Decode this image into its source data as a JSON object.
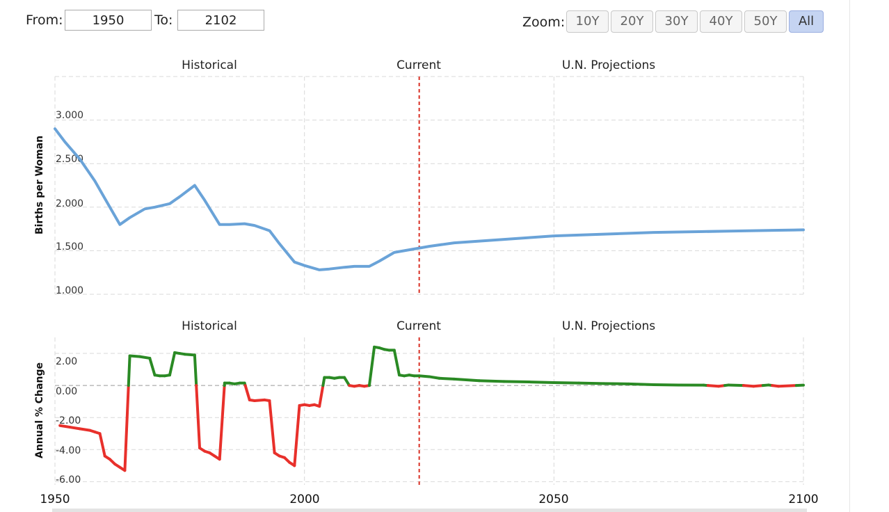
{
  "controls": {
    "from_label": "From:",
    "from_value": "1950",
    "to_label": "To:",
    "to_value": "2102",
    "zoom_label": "Zoom:",
    "zoom_buttons": [
      "10Y",
      "20Y",
      "30Y",
      "40Y",
      "50Y",
      "All"
    ],
    "zoom_active": "All"
  },
  "colors": {
    "line": "#6aa3d8",
    "positive": "#2a8a24",
    "negative": "#e8302b",
    "current_marker": "#d93025",
    "grid": "#d9d9d9"
  },
  "chart_data": [
    {
      "type": "line",
      "ylabel": "Births per Woman",
      "section_labels": [
        "Historical",
        "Current",
        "U.N. Projections"
      ],
      "xlim": [
        1950,
        2100
      ],
      "ylim": [
        1.0,
        3.0
      ],
      "yticks": [
        "1.000",
        "1.500",
        "2.000",
        "2.500",
        "3.000"
      ],
      "current_year": 2023,
      "grid": true,
      "x": [
        1950,
        1952,
        1955,
        1958,
        1960,
        1963,
        1965,
        1968,
        1970,
        1973,
        1975,
        1978,
        1980,
        1983,
        1985,
        1988,
        1990,
        1993,
        1995,
        1998,
        2000,
        2003,
        2005,
        2008,
        2010,
        2013,
        2015,
        2018,
        2020,
        2023,
        2025,
        2030,
        2035,
        2040,
        2045,
        2050,
        2055,
        2060,
        2065,
        2070,
        2075,
        2080,
        2085,
        2090,
        2095,
        2100
      ],
      "y": [
        2.9,
        2.75,
        2.55,
        2.3,
        2.1,
        1.8,
        1.88,
        1.98,
        2.0,
        2.04,
        2.12,
        2.25,
        2.08,
        1.8,
        1.8,
        1.81,
        1.79,
        1.73,
        1.58,
        1.37,
        1.33,
        1.28,
        1.29,
        1.31,
        1.32,
        1.32,
        1.38,
        1.48,
        1.5,
        1.53,
        1.55,
        1.59,
        1.61,
        1.63,
        1.65,
        1.67,
        1.68,
        1.69,
        1.7,
        1.71,
        1.715,
        1.72,
        1.725,
        1.73,
        1.735,
        1.74
      ]
    },
    {
      "type": "line",
      "ylabel": "Annual % Change",
      "section_labels": [
        "Historical",
        "Current",
        "U.N. Projections"
      ],
      "xlim": [
        1950,
        2100
      ],
      "xticks": [
        "1950",
        "2000",
        "2050",
        "2100"
      ],
      "ylim": [
        -6.0,
        2.0
      ],
      "yticks": [
        "-6.00",
        "-4.00",
        "-2.00",
        "0.00",
        "2.00"
      ],
      "current_year": 2023,
      "grid": true,
      "x": [
        1951,
        1953,
        1955,
        1957,
        1958,
        1959,
        1960,
        1961,
        1962,
        1963,
        1964,
        1965,
        1967,
        1969,
        1970,
        1971,
        1972,
        1973,
        1974,
        1975,
        1976,
        1978,
        1979,
        1980,
        1981,
        1982,
        1983,
        1984,
        1985,
        1986,
        1987,
        1988,
        1989,
        1990,
        1992,
        1993,
        1994,
        1995,
        1996,
        1997,
        1998,
        1999,
        2000,
        2001,
        2002,
        2003,
        2004,
        2005,
        2006,
        2007,
        2008,
        2009,
        2010,
        2011,
        2012,
        2013,
        2014,
        2015,
        2016,
        2017,
        2018,
        2019,
        2020,
        2021,
        2022,
        2023,
        2025,
        2027,
        2030,
        2035,
        2040,
        2045,
        2050,
        2055,
        2060,
        2065,
        2070,
        2075,
        2080,
        2083,
        2085,
        2088,
        2090,
        2093,
        2095,
        2100
      ],
      "y": [
        -2.5,
        -2.6,
        -2.7,
        -2.8,
        -2.9,
        -3.0,
        -4.4,
        -4.6,
        -4.9,
        -5.1,
        -5.3,
        1.85,
        1.8,
        1.7,
        0.65,
        0.6,
        0.6,
        0.65,
        2.05,
        2.0,
        1.95,
        1.9,
        -3.9,
        -4.1,
        -4.2,
        -4.4,
        -4.6,
        0.15,
        0.15,
        0.1,
        0.15,
        0.15,
        -0.9,
        -0.95,
        -0.9,
        -0.95,
        -4.2,
        -4.4,
        -4.5,
        -4.8,
        -5.0,
        -1.25,
        -1.2,
        -1.25,
        -1.2,
        -1.3,
        0.5,
        0.5,
        0.45,
        0.5,
        0.5,
        0.0,
        -0.05,
        0.0,
        -0.05,
        0.0,
        2.4,
        2.35,
        2.25,
        2.2,
        2.2,
        0.65,
        0.6,
        0.65,
        0.6,
        0.6,
        0.55,
        0.45,
        0.4,
        0.3,
        0.25,
        0.22,
        0.18,
        0.15,
        0.12,
        0.1,
        0.05,
        0.03,
        0.02,
        -0.05,
        0.03,
        0.0,
        -0.05,
        0.03,
        -0.05,
        0.02
      ]
    }
  ]
}
